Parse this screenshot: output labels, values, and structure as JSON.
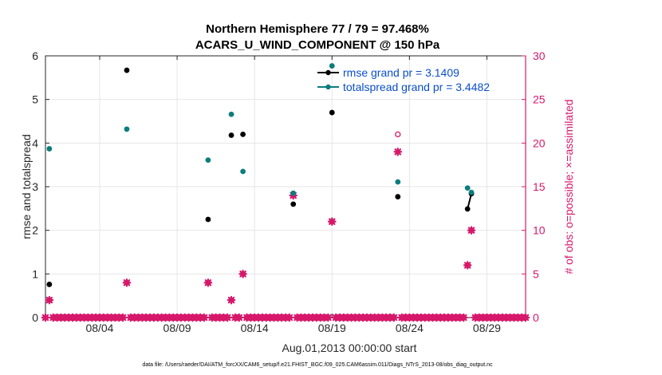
{
  "chart_data": {
    "type": "scatter",
    "title_line1": "Northern Hemisphere 77 / 79 = 97.468%",
    "title_line2": "ACARS_U_WIND_COMPONENT @ 150 hPa",
    "xlabel": "Aug.01,2013 00:00:00 start",
    "ylabel_left": "rmse and totalspread",
    "ylabel_right": "# of obs: o=possible; ×=assimilated",
    "footer": "data file: /Users/raeder/DAI/ATM_forcXX/CAM6_setup/f.e21.FHIST_BGC.f09_025.CAM6assim.011/Diags_NTrS_2013-08/obs_diag_output.nc",
    "xlim_days": [
      0.5,
      31.5
    ],
    "ylim_left": [
      0,
      6
    ],
    "ylim_right": [
      0,
      30
    ],
    "xticks": [
      {
        "day": 4,
        "label": "08/04"
      },
      {
        "day": 9,
        "label": "08/09"
      },
      {
        "day": 14,
        "label": "08/14"
      },
      {
        "day": 19,
        "label": "08/19"
      },
      {
        "day": 24,
        "label": "08/24"
      },
      {
        "day": 29,
        "label": "08/29"
      }
    ],
    "yticks_left": [
      "0",
      "1",
      "2",
      "3",
      "4",
      "5",
      "6"
    ],
    "yticks_right": [
      "0",
      "5",
      "10",
      "15",
      "20",
      "25",
      "30"
    ],
    "grid": true,
    "legend_position": "top-right",
    "colors": {
      "rmse": "#000000",
      "totalspread": "#0b7d7d",
      "obs": "#d6186b",
      "legend_text": "#0a4ec9",
      "grid": "#e6e6e6",
      "axis": "#262626"
    },
    "series": [
      {
        "name": "rmse grand pr = 3.1409",
        "key": "rmse",
        "points": [
          {
            "x": 0.75,
            "y": 0.76
          },
          {
            "x": 5.75,
            "y": 5.67
          },
          {
            "x": 11.0,
            "y": 2.25
          },
          {
            "x": 12.5,
            "y": 4.18
          },
          {
            "x": 13.25,
            "y": 4.2
          },
          {
            "x": 16.5,
            "y": 2.6
          },
          {
            "x": 19.0,
            "y": 4.7
          },
          {
            "x": 23.25,
            "y": 2.77
          },
          {
            "x": 27.75,
            "y": 2.49
          },
          {
            "x": 28.0,
            "y": 2.84
          }
        ],
        "line_segment": [
          [
            27.75,
            2.49
          ],
          [
            28.0,
            2.84
          ]
        ]
      },
      {
        "name": "totalspread grand pr = 3.4482",
        "key": "totalspread",
        "points": [
          {
            "x": 0.75,
            "y": 3.87
          },
          {
            "x": 5.75,
            "y": 4.32
          },
          {
            "x": 11.0,
            "y": 3.61
          },
          {
            "x": 12.5,
            "y": 4.66
          },
          {
            "x": 13.25,
            "y": 3.35
          },
          {
            "x": 16.5,
            "y": 2.85
          },
          {
            "x": 19.0,
            "y": 5.77
          },
          {
            "x": 23.25,
            "y": 3.11
          },
          {
            "x": 27.75,
            "y": 2.97
          },
          {
            "x": 28.0,
            "y": 2.87
          }
        ]
      }
    ],
    "obs_assimilated": [
      {
        "x": 0.75,
        "y": 2
      },
      {
        "x": 5.75,
        "y": 4
      },
      {
        "x": 11.0,
        "y": 4
      },
      {
        "x": 12.5,
        "y": 2
      },
      {
        "x": 13.25,
        "y": 5
      },
      {
        "x": 16.5,
        "y": 14
      },
      {
        "x": 19.0,
        "y": 11
      },
      {
        "x": 23.25,
        "y": 19
      },
      {
        "x": 27.75,
        "y": 6
      },
      {
        "x": 28.0,
        "y": 10
      }
    ],
    "obs_possible": [
      {
        "x": 0.75,
        "y": 2
      },
      {
        "x": 5.75,
        "y": 4
      },
      {
        "x": 11.0,
        "y": 4
      },
      {
        "x": 12.5,
        "y": 2
      },
      {
        "x": 13.25,
        "y": 5
      },
      {
        "x": 16.5,
        "y": 14
      },
      {
        "x": 19.0,
        "y": 11
      },
      {
        "x": 23.25,
        "y": 21
      },
      {
        "x": 27.75,
        "y": 6
      },
      {
        "x": 28.0,
        "y": 10
      }
    ],
    "zero_obs_step_days": 0.25
  }
}
